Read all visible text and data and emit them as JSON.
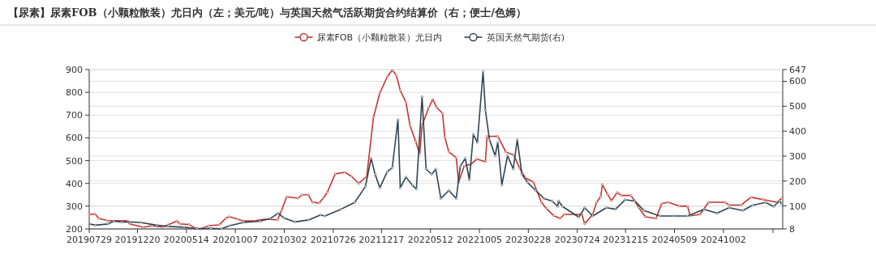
{
  "chart_data": {
    "type": "line",
    "title": "【尿素】尿素FOB（小颗粒散装）尤日内（左；美元/吨）与英国天然气活跃期货合约结算价（右；便士/色姆）",
    "legend": "top",
    "grid": "y",
    "marker": "circle",
    "xlim": [
      "2019-07-29",
      "2025-03-28"
    ],
    "xticks": [
      {
        "value": "2019-07-29",
        "label": "20190729"
      },
      {
        "value": "2019-12-20",
        "label": "20191220"
      },
      {
        "value": "2020-05-14",
        "label": "20200514"
      },
      {
        "value": "2020-10-07",
        "label": "20201007"
      },
      {
        "value": "2021-03-02",
        "label": "20210302"
      },
      {
        "value": "2021-07-26",
        "label": "20210726"
      },
      {
        "value": "2021-12-17",
        "label": "20211217"
      },
      {
        "value": "2022-05-12",
        "label": "20220512"
      },
      {
        "value": "2022-10-05",
        "label": "20221005"
      },
      {
        "value": "2023-02-28",
        "label": "20230228"
      },
      {
        "value": "2023-07-24",
        "label": "20230724"
      },
      {
        "value": "2023-12-15",
        "label": "20231215"
      },
      {
        "value": "2024-05-09",
        "label": "20240509"
      },
      {
        "value": "2024-10-02",
        "label": "20241002"
      },
      {
        "value": "2025-02-27",
        "label": null
      }
    ],
    "ylim": [
      200,
      900
    ],
    "yticks": [
      200,
      300,
      400,
      500,
      600,
      700,
      800,
      900
    ],
    "y2lim": [
      8,
      647
    ],
    "y2ticks": [
      8,
      100,
      200,
      300,
      400,
      500,
      600,
      647
    ],
    "series": [
      {
        "name": "尿素FOB（小颗粒散装）尤日内",
        "color": "#c23531",
        "x": [
          "2019-07-29",
          "2019-08-15",
          "2019-08-27",
          "2019-09-20",
          "2019-11-20",
          "2019-11-27",
          "2020-01-07",
          "2020-02-01",
          "2020-03-03",
          "2020-03-20",
          "2020-04-16",
          "2020-04-25",
          "2020-05-22",
          "2020-06-08",
          "2020-06-25",
          "2020-07-19",
          "2020-08-20",
          "2020-09-08",
          "2020-09-18",
          "2020-10-14",
          "2020-10-31",
          "2020-12-02",
          "2021-01-05",
          "2021-02-10",
          "2021-02-22",
          "2021-03-09",
          "2021-04-12",
          "2021-04-24",
          "2021-05-13",
          "2021-05-25",
          "2021-06-14",
          "2021-06-26",
          "2021-07-08",
          "2021-08-01",
          "2021-08-30",
          "2021-09-18",
          "2021-10-10",
          "2021-11-03",
          "2021-11-23",
          "2021-12-12",
          "2022-01-03",
          "2022-01-18",
          "2022-01-30",
          "2022-02-11",
          "2022-02-28",
          "2022-03-12",
          "2022-03-29",
          "2022-04-10",
          "2022-04-17",
          "2022-05-07",
          "2022-05-19",
          "2022-05-31",
          "2022-06-17",
          "2022-06-24",
          "2022-07-06",
          "2022-07-28",
          "2022-08-04",
          "2022-08-21",
          "2022-09-10",
          "2022-09-27",
          "2022-10-23",
          "2022-10-28",
          "2022-11-29",
          "2022-12-23",
          "2023-01-16",
          "2023-02-02",
          "2023-02-19",
          "2023-03-15",
          "2023-04-08",
          "2023-04-23",
          "2023-05-15",
          "2023-06-03",
          "2023-06-15",
          "2023-08-07",
          "2023-08-15",
          "2023-09-08",
          "2023-09-20",
          "2023-10-02",
          "2023-10-07",
          "2023-10-22",
          "2023-11-03",
          "2023-11-20",
          "2023-12-02",
          "2023-12-31",
          "2024-01-14",
          "2024-01-24",
          "2024-02-12",
          "2024-03-15",
          "2024-04-01",
          "2024-04-20",
          "2024-05-24",
          "2024-06-17",
          "2024-06-25",
          "2024-07-24",
          "2024-08-19",
          "2024-10-07",
          "2024-10-19",
          "2024-11-24",
          "2024-12-23",
          "2025-01-29",
          "2025-03-11",
          "2025-03-25"
        ],
        "values": [
          263,
          266,
          246,
          237,
          235,
          222,
          207,
          214,
          208,
          218,
          235,
          222,
          219,
          205,
          200,
          214,
          218,
          246,
          254,
          243,
          235,
          235,
          243,
          240,
          282,
          341,
          335,
          350,
          350,
          317,
          314,
          335,
          360,
          442,
          449,
          431,
          400,
          431,
          690,
          797,
          868,
          898,
          875,
          809,
          756,
          655,
          584,
          530,
          655,
          733,
          769,
          733,
          708,
          602,
          538,
          513,
          406,
          477,
          484,
          507,
          495,
          607,
          607,
          538,
          524,
          467,
          424,
          406,
          317,
          289,
          258,
          246,
          264,
          264,
          222,
          264,
          317,
          342,
          395,
          353,
          324,
          360,
          347,
          347,
          317,
          293,
          253,
          246,
          311,
          317,
          300,
          300,
          258,
          264,
          317,
          317,
          305,
          305,
          339,
          329,
          317,
          335
        ]
      },
      {
        "name": "英国天然气期货(右)",
        "color": "#2f4554",
        "axis": "y2",
        "x": [
          "2019-07-29",
          "2019-08-17",
          "2019-09-23",
          "2019-10-10",
          "2019-11-03",
          "2019-11-27",
          "2019-12-29",
          "2020-02-15",
          "2020-03-20",
          "2020-05-07",
          "2020-06-15",
          "2020-07-26",
          "2020-08-27",
          "2020-09-20",
          "2020-10-31",
          "2020-12-19",
          "2021-01-19",
          "2021-02-12",
          "2021-03-01",
          "2021-04-02",
          "2021-05-13",
          "2021-06-18",
          "2021-07-01",
          "2021-08-18",
          "2021-09-28",
          "2021-10-30",
          "2021-11-16",
          "2021-11-28",
          "2021-12-12",
          "2022-01-03",
          "2022-01-18",
          "2022-02-04",
          "2022-02-11",
          "2022-02-28",
          "2022-03-19",
          "2022-03-31",
          "2022-04-17",
          "2022-04-29",
          "2022-05-16",
          "2022-05-28",
          "2022-06-12",
          "2022-07-06",
          "2022-07-28",
          "2022-08-09",
          "2022-08-24",
          "2022-09-05",
          "2022-09-17",
          "2022-09-29",
          "2022-10-16",
          "2022-10-23",
          "2022-11-04",
          "2022-11-21",
          "2022-11-29",
          "2022-12-11",
          "2022-12-28",
          "2023-01-14",
          "2023-01-26",
          "2023-02-09",
          "2023-02-26",
          "2023-03-22",
          "2023-04-16",
          "2023-05-10",
          "2023-05-27",
          "2023-05-29",
          "2023-06-10",
          "2023-07-29",
          "2023-08-15",
          "2023-09-08",
          "2023-10-19",
          "2023-11-15",
          "2023-12-14",
          "2024-01-12",
          "2024-02-08",
          "2024-03-27",
          "2024-05-07",
          "2024-06-17",
          "2024-08-05",
          "2024-09-13",
          "2024-10-19",
          "2024-11-29",
          "2024-12-28",
          "2025-02-05",
          "2025-03-01",
          "2025-03-18",
          "2025-03-25"
        ],
        "values": [
          28,
          23,
          28,
          39,
          36,
          36,
          34,
          23,
          18,
          15,
          9,
          10,
          9,
          21,
          34,
          39,
          50,
          71,
          52,
          36,
          44,
          64,
          60,
          87,
          114,
          178,
          291,
          227,
          173,
          237,
          253,
          446,
          173,
          216,
          183,
          168,
          538,
          248,
          227,
          248,
          130,
          162,
          130,
          259,
          291,
          205,
          387,
          355,
          639,
          484,
          366,
          302,
          355,
          184,
          302,
          248,
          366,
          227,
          194,
          162,
          130,
          120,
          98,
          120,
          98,
          55,
          93,
          60,
          93,
          87,
          125,
          120,
          82,
          60,
          60,
          60,
          87,
          71,
          93,
          82,
          103,
          114,
          98,
          120,
          109
        ]
      }
    ]
  }
}
